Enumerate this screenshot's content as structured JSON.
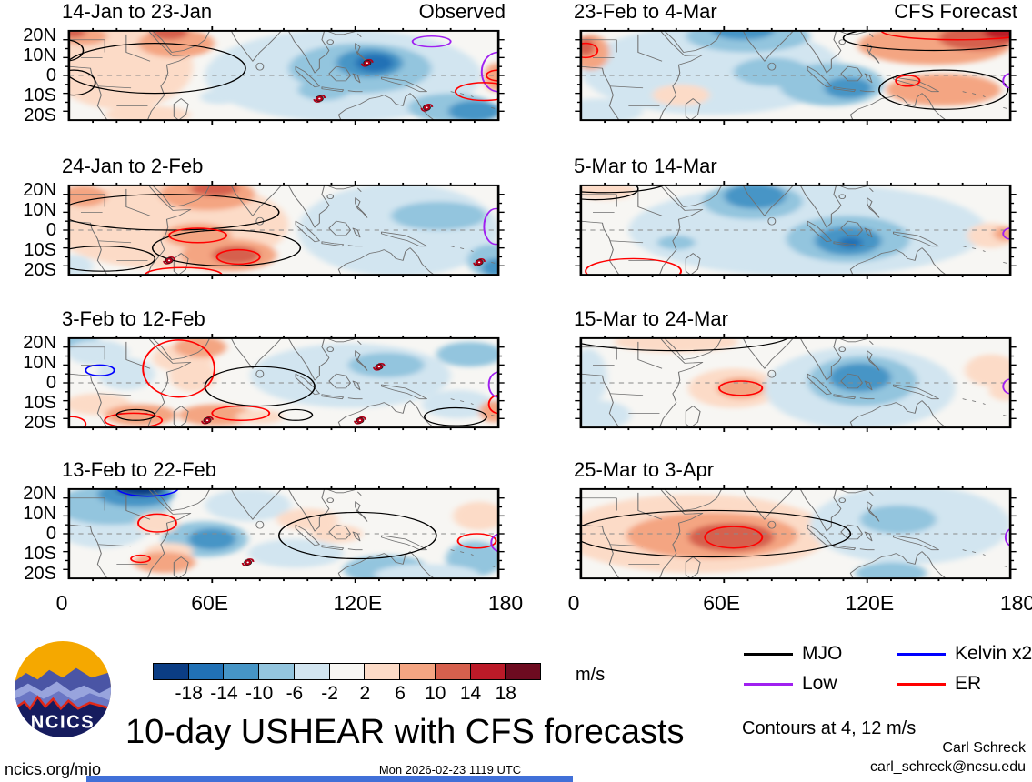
{
  "figure": {
    "title": "10-day USHEAR with CFS forecasts",
    "timestamp": "Mon 2026-02-23 1119 UTC",
    "site_url": "ncics.org/mjo",
    "credit_name": "Carl Schreck",
    "credit_email": "carl_schreck@ncsu.edu",
    "logo_text": "NCICS",
    "contours_note": "Contours at 4, 12 m/s",
    "bottom_bar_color": "#4170d8"
  },
  "chart_data": {
    "type": "heatmap",
    "title": "10-day USHEAR with CFS forecasts",
    "x_ticks": [
      "0",
      "60E",
      "120E",
      "180"
    ],
    "y_ticks": [
      "20N",
      "10N",
      "0",
      "10S",
      "20S"
    ],
    "x_range_deg": [
      0,
      180
    ],
    "y_range_deg": [
      25,
      -25
    ],
    "colorbar": {
      "ticks": [
        -18,
        -14,
        -10,
        -6,
        -2,
        2,
        6,
        10,
        14,
        18
      ],
      "unit": "m/s",
      "colors": [
        "#0b3d84",
        "#2171b5",
        "#4695c6",
        "#93c5de",
        "#d2e5f0",
        "#f7f6f3",
        "#fcdbc7",
        "#f4a582",
        "#d6604d",
        "#bb1a28",
        "#6d0b20"
      ]
    },
    "legend": [
      {
        "label": "MJO",
        "key": "mjo",
        "color": "#000000"
      },
      {
        "label": "Kelvin x2",
        "key": "kelvin",
        "color": "#0000ff"
      },
      {
        "label": "Low",
        "key": "low",
        "color": "#a020f0"
      },
      {
        "label": "ER",
        "key": "er",
        "color": "#ff0000"
      }
    ],
    "panels": [
      {
        "title": "14-Jan to 23-Jan",
        "tag": "Observed",
        "blobs": [
          [
            22,
            5,
            30,
            24,
            4
          ],
          [
            45,
            18,
            16,
            8,
            8
          ],
          [
            42,
            24,
            8,
            4,
            12
          ],
          [
            6,
            22,
            10,
            5,
            8
          ],
          [
            2,
            24,
            5,
            3,
            12
          ],
          [
            33,
            -22,
            18,
            5,
            4
          ],
          [
            63,
            -12,
            8,
            4,
            -4
          ],
          [
            115,
            0,
            58,
            26,
            -4
          ],
          [
            122,
            4,
            30,
            14,
            -8
          ],
          [
            126,
            7,
            14,
            8,
            -12
          ],
          [
            128,
            7,
            8,
            5,
            -16
          ],
          [
            107,
            -8,
            11,
            6,
            -8
          ],
          [
            160,
            -18,
            18,
            8,
            -8
          ],
          [
            170,
            -20,
            11,
            6,
            -14
          ],
          [
            179,
            -1,
            5,
            8,
            6
          ]
        ],
        "contours": [
          [
            "mjo",
            36,
            4,
            38,
            14
          ],
          [
            "mjo",
            2,
            -4,
            9,
            7
          ],
          [
            "mjo",
            -2,
            14,
            8,
            6
          ],
          [
            "low",
            152,
            19,
            8,
            3
          ],
          [
            "low",
            180,
            2,
            7,
            11
          ],
          [
            "er",
            174,
            -9,
            12,
            5
          ],
          [
            "er",
            180,
            0,
            5,
            3
          ]
        ],
        "cyclones": [
          [
            125,
            7
          ],
          [
            105,
            -13
          ],
          [
            150,
            -18
          ]
        ]
      },
      {
        "title": "23-Feb to 4-Mar",
        "tag": "CFS Forecast",
        "blobs": [
          [
            55,
            3,
            55,
            25,
            -4
          ],
          [
            70,
            22,
            26,
            9,
            -8
          ],
          [
            68,
            25,
            13,
            5,
            -14
          ],
          [
            80,
            2,
            16,
            8,
            -8
          ],
          [
            105,
            -5,
            22,
            12,
            -8
          ],
          [
            112,
            -7,
            10,
            6,
            -12
          ],
          [
            148,
            17,
            32,
            11,
            6
          ],
          [
            166,
            21,
            16,
            7,
            10
          ],
          [
            177,
            24,
            8,
            4,
            16
          ],
          [
            152,
            -8,
            24,
            9,
            6
          ],
          [
            4,
            13,
            8,
            10,
            6
          ],
          [
            2,
            16,
            4,
            5,
            10
          ],
          [
            42,
            -11,
            12,
            6,
            4
          ],
          [
            8,
            -20,
            18,
            7,
            -4
          ]
        ],
        "contours": [
          [
            "mjo",
            148,
            21,
            38,
            7
          ],
          [
            "mjo",
            152,
            -8,
            27,
            11
          ],
          [
            "er",
            158,
            25,
            32,
            5
          ],
          [
            "er",
            137,
            -3,
            5,
            3
          ],
          [
            "er",
            2,
            14,
            5,
            4
          ],
          [
            "low",
            180,
            -3,
            3,
            4
          ]
        ],
        "cyclones": []
      },
      {
        "title": "24-Jan to 2-Feb",
        "tag": "",
        "blobs": [
          [
            42,
            3,
            50,
            25,
            4
          ],
          [
            58,
            20,
            20,
            9,
            8
          ],
          [
            61,
            23,
            10,
            4,
            12
          ],
          [
            54,
            -3,
            14,
            7,
            8
          ],
          [
            67,
            -14,
            20,
            9,
            8
          ],
          [
            70,
            -14,
            10,
            5,
            12
          ],
          [
            6,
            19,
            10,
            6,
            8
          ],
          [
            138,
            0,
            42,
            26,
            -4
          ],
          [
            155,
            8,
            20,
            8,
            -8
          ],
          [
            177,
            -17,
            10,
            9,
            -8
          ],
          [
            179,
            -21,
            6,
            5,
            -14
          ],
          [
            2,
            -20,
            8,
            6,
            -4
          ]
        ],
        "contours": [
          [
            "mjo",
            42,
            10,
            46,
            10
          ],
          [
            "mjo",
            66,
            -10,
            31,
            10
          ],
          [
            "mjo",
            14,
            -16,
            22,
            7
          ],
          [
            "er",
            54,
            -3,
            12,
            4
          ],
          [
            "er",
            71,
            -15,
            9,
            4
          ],
          [
            "er",
            48,
            -25,
            16,
            4
          ],
          [
            "low",
            179,
            2,
            5,
            10
          ]
        ],
        "cyclones": [
          [
            42,
            -17
          ],
          [
            172,
            -18
          ]
        ]
      },
      {
        "title": "5-Mar to 14-Mar",
        "tag": "",
        "blobs": [
          [
            95,
            0,
            75,
            26,
            -4
          ],
          [
            72,
            16,
            21,
            10,
            -8
          ],
          [
            73,
            19,
            13,
            7,
            -12
          ],
          [
            112,
            -5,
            26,
            13,
            -8
          ],
          [
            112,
            -6,
            14,
            8,
            -12
          ],
          [
            113,
            -7,
            5,
            3,
            -16
          ],
          [
            10,
            22,
            13,
            5,
            4
          ],
          [
            40,
            -7,
            8,
            4,
            -8
          ],
          [
            172,
            -3,
            10,
            7,
            4
          ],
          [
            178,
            -2,
            5,
            4,
            6
          ]
        ],
        "contours": [
          [
            "mjo",
            6,
            23,
            18,
            6
          ],
          [
            "mjo",
            10,
            27,
            26,
            6
          ],
          [
            "er",
            22,
            -23,
            20,
            7
          ],
          [
            "low",
            180,
            -2,
            3,
            3
          ]
        ],
        "cyclones": []
      },
      {
        "title": "3-Feb to 12-Feb",
        "tag": "",
        "blobs": [
          [
            4,
            23,
            9,
            5,
            -10
          ],
          [
            12,
            17,
            13,
            7,
            -4
          ],
          [
            24,
            5,
            12,
            9,
            -4
          ],
          [
            48,
            14,
            13,
            8,
            4
          ],
          [
            55,
            20,
            11,
            6,
            6
          ],
          [
            52,
            4,
            10,
            9,
            4
          ],
          [
            12,
            -12,
            14,
            6,
            4
          ],
          [
            30,
            -18,
            15,
            6,
            6
          ],
          [
            33,
            -19,
            6,
            3,
            8
          ],
          [
            62,
            -18,
            16,
            6,
            6
          ],
          [
            80,
            -19,
            10,
            4,
            4
          ],
          [
            118,
            4,
            42,
            18,
            -4
          ],
          [
            133,
            10,
            16,
            7,
            -8
          ],
          [
            168,
            16,
            14,
            7,
            -8
          ],
          [
            163,
            -12,
            15,
            8,
            -4
          ],
          [
            178,
            -16,
            6,
            6,
            6
          ]
        ],
        "contours": [
          [
            "er",
            46,
            8,
            15,
            16
          ],
          [
            "er",
            27,
            -21,
            12,
            4
          ],
          [
            "er",
            72,
            -17,
            12,
            4
          ],
          [
            "er",
            1,
            -23,
            6,
            4
          ],
          [
            "er",
            180,
            -12,
            4,
            5
          ],
          [
            "mjo",
            80,
            -2,
            23,
            11
          ],
          [
            "mjo",
            95,
            -18,
            7,
            3
          ],
          [
            "mjo",
            162,
            -19,
            13,
            5
          ],
          [
            "mjo",
            28,
            -18,
            8,
            3
          ],
          [
            "kelvin",
            13,
            7,
            6,
            3
          ],
          [
            "low",
            180,
            -1,
            4,
            7
          ]
        ],
        "cyclones": [
          [
            58,
            -21
          ],
          [
            122,
            -21
          ],
          [
            130,
            9
          ]
        ]
      },
      {
        "title": "15-Mar to 24-Mar",
        "tag": "",
        "blobs": [
          [
            3,
            3,
            8,
            16,
            -4
          ],
          [
            8,
            -18,
            13,
            8,
            -4
          ],
          [
            40,
            23,
            26,
            6,
            4
          ],
          [
            64,
            -3,
            19,
            11,
            4
          ],
          [
            67,
            -3,
            10,
            6,
            6
          ],
          [
            117,
            -3,
            40,
            23,
            -4
          ],
          [
            118,
            1,
            23,
            14,
            -8
          ],
          [
            117,
            3,
            13,
            8,
            -12
          ],
          [
            172,
            7,
            11,
            9,
            4
          ],
          [
            178,
            -4,
            7,
            6,
            4
          ]
        ],
        "contours": [
          [
            "mjo",
            40,
            27,
            48,
            9
          ],
          [
            "er",
            67,
            -3,
            9,
            4
          ],
          [
            "low",
            180,
            -2,
            3,
            4
          ]
        ],
        "cyclones": []
      },
      {
        "title": "13-Feb to 22-Feb",
        "tag": "",
        "blobs": [
          [
            14,
            8,
            22,
            16,
            -4
          ],
          [
            18,
            16,
            24,
            11,
            -8
          ],
          [
            28,
            22,
            16,
            7,
            -12
          ],
          [
            30,
            25,
            10,
            4,
            -20
          ],
          [
            75,
            16,
            18,
            9,
            -4
          ],
          [
            57,
            -3,
            18,
            10,
            -8
          ],
          [
            60,
            -3,
            10,
            6,
            -12
          ],
          [
            37,
            6,
            9,
            6,
            4
          ],
          [
            42,
            -10,
            10,
            5,
            4
          ],
          [
            40,
            -16,
            13,
            6,
            8
          ],
          [
            100,
            8,
            13,
            6,
            4
          ],
          [
            112,
            0,
            11,
            5,
            4
          ],
          [
            95,
            -11,
            20,
            8,
            -4
          ],
          [
            133,
            -20,
            18,
            8,
            -8
          ],
          [
            170,
            -14,
            12,
            10,
            -8
          ],
          [
            150,
            -23,
            22,
            6,
            -4
          ],
          [
            172,
            10,
            11,
            8,
            4
          ]
        ],
        "contours": [
          [
            "kelvin",
            33,
            26,
            13,
            5
          ],
          [
            "er",
            37,
            6,
            8,
            5
          ],
          [
            "er",
            30,
            -14,
            4,
            2
          ],
          [
            "er",
            171,
            -4,
            8,
            4
          ],
          [
            "mjo",
            121,
            -1,
            33,
            13
          ],
          [
            "low",
            181,
            -5,
            4,
            5
          ]
        ],
        "cyclones": [
          [
            75,
            -16
          ]
        ]
      },
      {
        "title": "25-Mar to 3-Apr",
        "tag": "",
        "blobs": [
          [
            48,
            0,
            56,
            22,
            4
          ],
          [
            55,
            -1,
            36,
            13,
            8
          ],
          [
            63,
            -2,
            18,
            8,
            12
          ],
          [
            138,
            5,
            42,
            22,
            -4
          ],
          [
            133,
            8,
            16,
            8,
            -8
          ],
          [
            130,
            -22,
            15,
            6,
            -8
          ]
        ],
        "contours": [
          [
            "mjo",
            55,
            0,
            58,
            13
          ],
          [
            "er",
            64,
            -2,
            12,
            6
          ],
          [
            "low",
            181,
            -2,
            3,
            5
          ]
        ],
        "cyclones": []
      }
    ]
  }
}
